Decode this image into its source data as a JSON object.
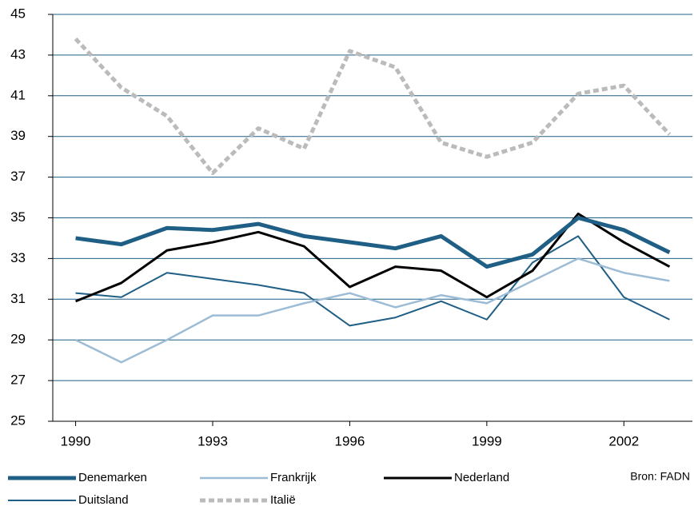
{
  "chart_data": {
    "type": "line",
    "x": [
      1990,
      1991,
      1992,
      1993,
      1994,
      1995,
      1996,
      1997,
      1998,
      1999,
      2000,
      2001,
      2002,
      2003
    ],
    "xlim": [
      1989.5,
      2003.5
    ],
    "xticks": [
      1990,
      1993,
      1996,
      1999,
      2002
    ],
    "ylim": [
      25,
      45
    ],
    "yticks": [
      25,
      27,
      29,
      31,
      33,
      35,
      37,
      39,
      41,
      43,
      45
    ],
    "grid": true,
    "annotation": "Bron: FADN",
    "series": [
      {
        "name": "Denemarken",
        "color": "#1f5f85",
        "width": 5,
        "dashed": false,
        "values": [
          34.0,
          33.7,
          34.5,
          34.4,
          34.7,
          34.1,
          33.8,
          33.5,
          34.1,
          32.6,
          33.2,
          35.0,
          34.4,
          33.3
        ]
      },
      {
        "name": "Frankrijk",
        "color": "#9dbcd6",
        "width": 2.5,
        "dashed": false,
        "values": [
          29.0,
          27.9,
          29.0,
          30.2,
          30.2,
          30.8,
          31.3,
          30.6,
          31.2,
          30.8,
          31.9,
          33.0,
          32.3,
          31.9
        ]
      },
      {
        "name": "Nederland",
        "color": "#000000",
        "width": 3,
        "dashed": false,
        "values": [
          30.9,
          31.8,
          33.4,
          33.8,
          34.3,
          33.6,
          31.6,
          32.6,
          32.4,
          31.1,
          32.4,
          35.2,
          33.8,
          32.6
        ]
      },
      {
        "name": "Duitsland",
        "color": "#1f5f85",
        "width": 2,
        "dashed": false,
        "values": [
          31.3,
          31.1,
          32.3,
          32.0,
          31.7,
          31.3,
          29.7,
          30.1,
          30.9,
          30.0,
          32.8,
          34.1,
          31.1,
          30.0
        ]
      },
      {
        "name": "Italië",
        "color": "#bbbbbb",
        "width": 5,
        "dashed": true,
        "values": [
          43.8,
          41.4,
          40.0,
          37.2,
          39.4,
          38.4,
          43.2,
          42.4,
          38.7,
          38.0,
          38.7,
          41.1,
          41.5,
          39.1
        ]
      }
    ]
  }
}
